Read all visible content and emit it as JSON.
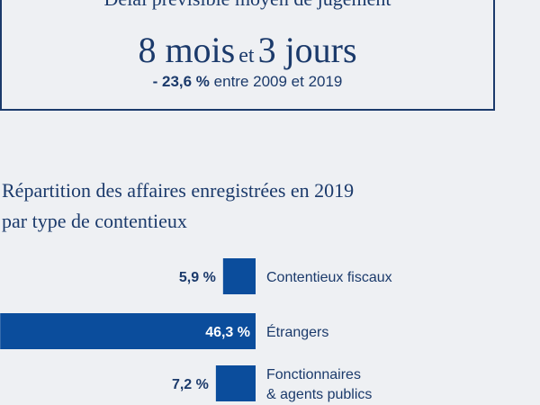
{
  "kpi": {
    "label": "Délai prévisible moyen de jugement",
    "months_value": "8 mois",
    "connector": "et",
    "days_value": "3 jours",
    "trend_value": "- 23,6 %",
    "trend_text": "entre 2009 et 2019"
  },
  "chart_title_line1": "Répartition des affaires enregistrées en 2019",
  "chart_title_line2": "par type de contentieux",
  "chart_data": {
    "type": "bar",
    "orientation": "horizontal",
    "title": "Répartition des affaires enregistrées en 2019 par type de contentieux",
    "categories": [
      [
        "Contentieux fiscaux"
      ],
      [
        "Étrangers"
      ],
      [
        "Fonctionnaires",
        "& agents publics"
      ]
    ],
    "values": [
      5.9,
      46.3,
      7.2
    ],
    "value_labels": [
      "5,9 %",
      "46,3 %",
      "7,2 %"
    ],
    "unit": "%",
    "bar_color": "#0b4d9c"
  }
}
